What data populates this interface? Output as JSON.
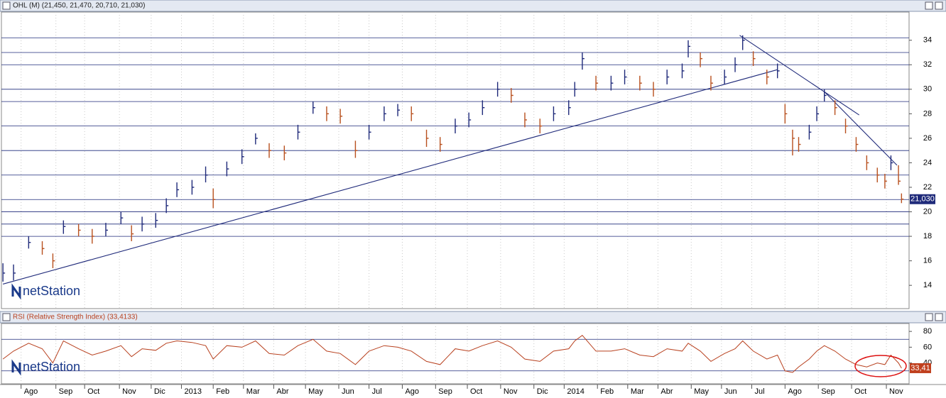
{
  "chart_data": [
    {
      "type": "ohlc",
      "title": "OHL (M) (21,450, 21,470, 20,710, 21,030)",
      "watermark": "netStation",
      "x": [
        1,
        8,
        18,
        27,
        34,
        41,
        51,
        60,
        69,
        79,
        86,
        93,
        102,
        109,
        116,
        126,
        135,
        140,
        149,
        159,
        168,
        177,
        187,
        196,
        206,
        215,
        224,
        234,
        243,
        253,
        262,
        271,
        281,
        290,
        300,
        309,
        318,
        328,
        337,
        346,
        356,
        365,
        375,
        379,
        384,
        393,
        403,
        412,
        422,
        431,
        440,
        450,
        454,
        462,
        469,
        478,
        485,
        490,
        497,
        506,
        513,
        518,
        523,
        527,
        534,
        539,
        544,
        551,
        558,
        565,
        572,
        579,
        584,
        588,
        593,
        595
      ],
      "series": [
        {
          "name": "High",
          "values": [
            15.8,
            15.7,
            18,
            17.6,
            16.6,
            19.3,
            19,
            18.6,
            19.1,
            20,
            18.9,
            19.6,
            19.9,
            21.1,
            22.4,
            22.6,
            23.7,
            21.9,
            24.1,
            25.1,
            26.4,
            25.6,
            25.4,
            27.1,
            29,
            28.6,
            28.4,
            25.8,
            27.1,
            28.6,
            28.8,
            28.6,
            26.7,
            26.1,
            27.6,
            28.1,
            29.1,
            30.6,
            30.1,
            28.1,
            27.6,
            28.6,
            29.1,
            30.6,
            33,
            31.1,
            31.1,
            31.6,
            31.1,
            30.6,
            31.6,
            32.1,
            34,
            33,
            31.1,
            31.6,
            32.6,
            34.4,
            33.1,
            31.6,
            32.1,
            28.8,
            26.7,
            26.1,
            27.1,
            28.6,
            30,
            29.1,
            27.6,
            26.1,
            24.6,
            23.6,
            23.1,
            24.6,
            23.8,
            21.5
          ]
        },
        {
          "name": "Low",
          "values": [
            14.3,
            14.4,
            17,
            16.5,
            15.4,
            18.2,
            18,
            17.4,
            18,
            19,
            17.6,
            18.4,
            18.7,
            19.9,
            21.2,
            21.4,
            22.4,
            20.3,
            22.9,
            23.9,
            25.5,
            24.4,
            24.2,
            25.9,
            28,
            27.4,
            27.2,
            24.4,
            25.9,
            27.4,
            27.8,
            27.4,
            25.3,
            24.9,
            26.4,
            26.9,
            27.9,
            29.4,
            28.9,
            26.9,
            26.4,
            27.4,
            27.9,
            29.4,
            31.6,
            29.9,
            29.9,
            30.4,
            29.9,
            29.4,
            30.4,
            30.9,
            32.6,
            31.8,
            29.9,
            30.4,
            31.4,
            33.2,
            31.9,
            30.4,
            30.9,
            27.2,
            24.6,
            24.9,
            25.9,
            27.4,
            29,
            27.9,
            26.4,
            24.9,
            23.4,
            22.4,
            21.9,
            23.4,
            22.2,
            20.71
          ]
        },
        {
          "name": "Close",
          "values": [
            15,
            15,
            17.5,
            17,
            16,
            18.8,
            18.5,
            18,
            18.5,
            19.5,
            18.2,
            19,
            19.3,
            20.5,
            21.8,
            22,
            23,
            21,
            23.5,
            24.5,
            26,
            25,
            24.8,
            26.5,
            28.5,
            28,
            27.8,
            25,
            26.5,
            28,
            28.3,
            28,
            26,
            25.5,
            27,
            27.5,
            28.5,
            30,
            29.5,
            27.5,
            27,
            28,
            28.5,
            30,
            32.5,
            30.5,
            30.5,
            31,
            30.5,
            30,
            31,
            31.5,
            33.5,
            32.5,
            30.5,
            31,
            32,
            34,
            32.5,
            31,
            31.5,
            28,
            26,
            25.5,
            26.5,
            28,
            29.5,
            28.5,
            27,
            25.5,
            24,
            23,
            22.5,
            24,
            22.5,
            21.03
          ]
        }
      ],
      "up_color": "#1f2a7a",
      "down_color": "#b8501e",
      "last_label": {
        "value": 21.03,
        "label": "21,030"
      },
      "levels": [
        34.2,
        33,
        32,
        30,
        29,
        27,
        25,
        23,
        21,
        20,
        19,
        18
      ],
      "trendlines": [
        [
          [
            1,
            14.1
          ],
          [
            513,
            31.6
          ]
        ],
        [
          [
            488,
            34.4
          ],
          [
            567,
            27.9
          ]
        ],
        [
          [
            544,
            29.8
          ],
          [
            592,
            23.8
          ]
        ]
      ],
      "xlim": [
        0,
        600
      ],
      "ylim": [
        12.1,
        36.3
      ],
      "yticks": [
        14,
        16,
        18,
        20,
        22,
        24,
        26,
        28,
        30,
        32,
        34
      ]
    },
    {
      "type": "line",
      "title": "RSI (Relative Strength Index) (33,4133)",
      "watermark": "netStation",
      "x": [
        1,
        8,
        18,
        27,
        34,
        41,
        51,
        60,
        69,
        79,
        86,
        93,
        102,
        109,
        116,
        126,
        135,
        140,
        149,
        159,
        168,
        177,
        187,
        196,
        206,
        215,
        224,
        234,
        243,
        253,
        262,
        271,
        281,
        290,
        300,
        309,
        318,
        328,
        337,
        346,
        356,
        365,
        375,
        379,
        384,
        393,
        403,
        412,
        422,
        431,
        440,
        450,
        454,
        462,
        469,
        478,
        485,
        490,
        497,
        506,
        513,
        518,
        523,
        527,
        534,
        539,
        544,
        551,
        558,
        565,
        572,
        579,
        584,
        588,
        593,
        595
      ],
      "values": [
        45,
        55,
        65,
        58,
        40,
        68,
        58,
        50,
        55,
        62,
        48,
        58,
        56,
        65,
        68,
        66,
        62,
        45,
        62,
        60,
        68,
        52,
        50,
        62,
        70,
        55,
        52,
        38,
        55,
        62,
        60,
        55,
        42,
        38,
        58,
        55,
        62,
        68,
        60,
        45,
        42,
        55,
        58,
        68,
        75,
        55,
        55,
        58,
        50,
        48,
        58,
        55,
        65,
        55,
        42,
        52,
        58,
        68,
        55,
        45,
        50,
        30,
        28,
        35,
        45,
        55,
        62,
        55,
        45,
        38,
        35,
        40,
        38,
        50,
        40,
        33.41
      ],
      "color": "#b8401e",
      "last_label": {
        "value": 33.41,
        "label": "33,41"
      },
      "levels": [
        70,
        30
      ],
      "xlim": [
        0,
        600
      ],
      "ylim": [
        13.6,
        90
      ],
      "yticks": [
        40,
        60,
        80
      ],
      "xticks": [
        {
          "value": 13,
          "label": "Ago"
        },
        {
          "value": 36,
          "label": "Sep"
        },
        {
          "value": 55,
          "label": "Oct"
        },
        {
          "value": 78,
          "label": "Nov"
        },
        {
          "value": 99,
          "label": "Dic"
        },
        {
          "value": 119,
          "label": "2013"
        },
        {
          "value": 140,
          "label": "Feb"
        },
        {
          "value": 160,
          "label": "Mar"
        },
        {
          "value": 180,
          "label": "Abr"
        },
        {
          "value": 201,
          "label": "May"
        },
        {
          "value": 223,
          "label": "Jun"
        },
        {
          "value": 243,
          "label": "Jul"
        },
        {
          "value": 265,
          "label": "Ago"
        },
        {
          "value": 287,
          "label": "Sep"
        },
        {
          "value": 308,
          "label": "Oct"
        },
        {
          "value": 330,
          "label": "Nov"
        },
        {
          "value": 352,
          "label": "Dic"
        },
        {
          "value": 372,
          "label": "2014"
        },
        {
          "value": 394,
          "label": "Feb"
        },
        {
          "value": 414,
          "label": "Mar"
        },
        {
          "value": 434,
          "label": "Abr"
        },
        {
          "value": 456,
          "label": "May"
        },
        {
          "value": 476,
          "label": "Jun"
        },
        {
          "value": 496,
          "label": "Jul"
        },
        {
          "value": 518,
          "label": "Ago"
        },
        {
          "value": 540,
          "label": "Sep"
        },
        {
          "value": 562,
          "label": "Oct"
        },
        {
          "value": 585,
          "label": "Nov"
        }
      ]
    }
  ]
}
